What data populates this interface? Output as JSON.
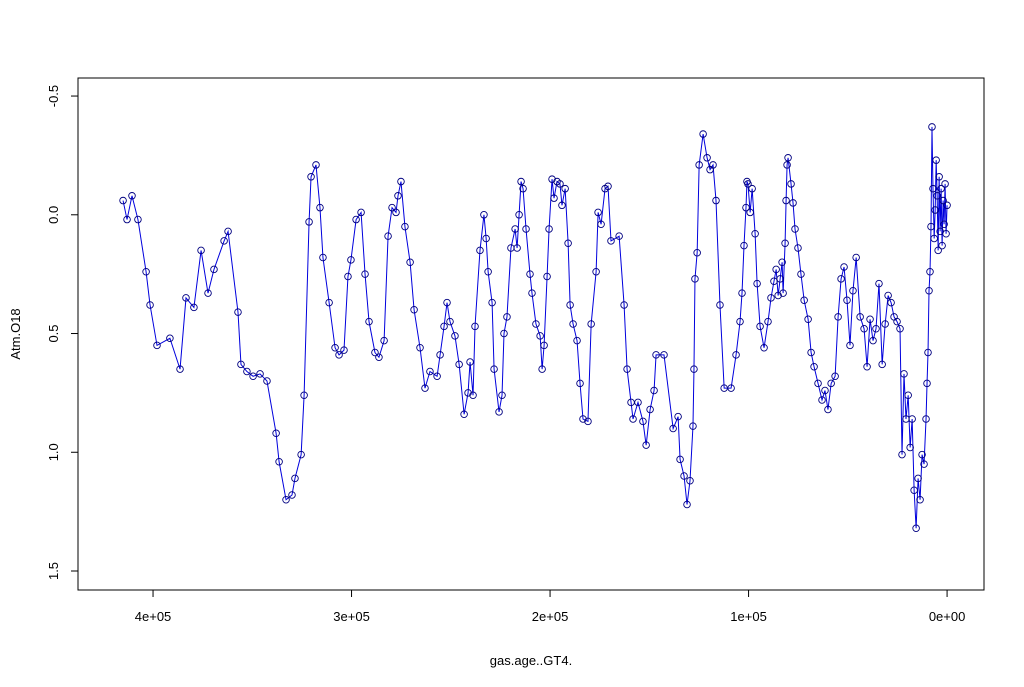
{
  "chart_data": {
    "type": "line",
    "xlabel": "gas.age..GT4.",
    "ylabel": "Atm.O18",
    "xlim": [
      437800,
      -18600
    ],
    "ylim": [
      -0.576,
      1.58
    ],
    "xticks": [
      {
        "value": 400000,
        "label": "4e+05"
      },
      {
        "value": 300000,
        "label": "3e+05"
      },
      {
        "value": 200000,
        "label": "2e+05"
      },
      {
        "value": 100000,
        "label": "1e+05"
      },
      {
        "value": 0,
        "label": "0e+00"
      }
    ],
    "yticks": [
      -0.5,
      {
        "value": 0,
        "label": "0.0"
      },
      0.5,
      {
        "value": 1,
        "label": "1.0"
      },
      1.5
    ],
    "line_color": "#0000dd",
    "point_color": "#000080",
    "x": [
      415100,
      413100,
      410600,
      407600,
      403500,
      401500,
      398000,
      391500,
      386400,
      383400,
      379400,
      375800,
      372300,
      369300,
      364200,
      362200,
      357200,
      355700,
      352700,
      349600,
      346100,
      342600,
      338000,
      336500,
      333000,
      330000,
      328500,
      325400,
      323900,
      321400,
      320400,
      317900,
      315900,
      314400,
      311300,
      308300,
      306300,
      303800,
      301800,
      300300,
      297700,
      295200,
      293200,
      291200,
      288200,
      286200,
      283600,
      281600,
      279600,
      277600,
      276600,
      275100,
      273100,
      270500,
      268500,
      265500,
      263000,
      260500,
      256900,
      255400,
      253400,
      251900,
      250400,
      247900,
      245800,
      243300,
      241300,
      240300,
      238800,
      237800,
      235300,
      233300,
      232200,
      231200,
      229200,
      228200,
      225700,
      224200,
      223200,
      221700,
      219700,
      217600,
      216600,
      215600,
      214600,
      213600,
      212100,
      210100,
      209100,
      207100,
      205000,
      204000,
      203000,
      201500,
      200500,
      199000,
      198000,
      196500,
      195000,
      194000,
      192400,
      190900,
      189900,
      188400,
      186400,
      184900,
      183400,
      180900,
      179300,
      176800,
      175800,
      174300,
      172300,
      170800,
      169300,
      165200,
      162700,
      161200,
      159200,
      158200,
      155700,
      153200,
      151600,
      149600,
      147600,
      146600,
      142600,
      138000,
      135500,
      134500,
      132500,
      131000,
      129500,
      128000,
      127500,
      127000,
      125900,
      124900,
      122900,
      120900,
      119400,
      117900,
      116400,
      114400,
      112300,
      108800,
      106300,
      104300,
      103300,
      102300,
      101300,
      100800,
      100300,
      99200,
      98200,
      96700,
      95700,
      94200,
      92200,
      90200,
      88700,
      87200,
      86100,
      85100,
      84100,
      83100,
      82600,
      81600,
      81100,
      80600,
      80100,
      78600,
      77600,
      76600,
      75100,
      73600,
      72000,
      70000,
      68500,
      67000,
      65000,
      63000,
      61500,
      60000,
      58400,
      56400,
      54900,
      53400,
      51900,
      50400,
      48900,
      47400,
      45800,
      43800,
      41800,
      40300,
      38800,
      37300,
      35800,
      34300,
      32700,
      31200,
      29700,
      28200,
      26700,
      25200,
      23700,
      22700,
      21700,
      20700,
      19600,
      18600,
      17600,
      16600,
      15600,
      14600,
      13600,
      12600,
      11600,
      10600,
      10100,
      9600,
      9100,
      8600,
      8100,
      7600,
      7100,
      6500,
      6000,
      5500,
      5000,
      4500,
      4000,
      3500,
      3000,
      2500,
      2000,
      1500,
      1000,
      500,
      0
    ],
    "values": [
      -0.06,
      0.02,
      -0.08,
      0.02,
      0.24,
      0.38,
      0.55,
      0.52,
      0.65,
      0.35,
      0.39,
      0.15,
      0.33,
      0.23,
      0.11,
      0.07,
      0.41,
      0.63,
      0.66,
      0.68,
      0.67,
      0.7,
      0.92,
      1.04,
      1.2,
      1.18,
      1.11,
      1.01,
      0.76,
      0.03,
      -0.16,
      -0.21,
      -0.03,
      0.18,
      0.37,
      0.56,
      0.59,
      0.57,
      0.26,
      0.19,
      0.02,
      -0.01,
      0.25,
      0.45,
      0.58,
      0.6,
      0.53,
      0.09,
      -0.03,
      -0.01,
      -0.08,
      -0.14,
      0.05,
      0.2,
      0.4,
      0.56,
      0.73,
      0.66,
      0.68,
      0.59,
      0.47,
      0.37,
      0.45,
      0.51,
      0.63,
      0.84,
      0.75,
      0.62,
      0.76,
      0.47,
      0.15,
      0.0,
      0.1,
      0.24,
      0.37,
      0.65,
      0.83,
      0.76,
      0.5,
      0.43,
      0.14,
      0.06,
      0.14,
      0.0,
      -0.14,
      -0.11,
      0.06,
      0.25,
      0.33,
      0.46,
      0.51,
      0.65,
      0.55,
      0.26,
      0.06,
      -0.15,
      -0.07,
      -0.14,
      -0.13,
      -0.04,
      -0.11,
      0.12,
      0.38,
      0.46,
      0.53,
      0.71,
      0.86,
      0.87,
      0.46,
      0.24,
      -0.01,
      0.04,
      -0.11,
      -0.12,
      0.11,
      0.09,
      0.38,
      0.65,
      0.79,
      0.86,
      0.79,
      0.87,
      0.97,
      0.82,
      0.74,
      0.59,
      0.59,
      0.9,
      0.85,
      1.03,
      1.1,
      1.22,
      1.12,
      0.89,
      0.65,
      0.27,
      0.16,
      -0.21,
      -0.34,
      -0.24,
      -0.19,
      -0.21,
      -0.06,
      0.38,
      0.73,
      0.73,
      0.59,
      0.45,
      0.33,
      0.13,
      -0.03,
      -0.14,
      -0.13,
      -0.01,
      -0.11,
      0.08,
      0.29,
      0.47,
      0.56,
      0.45,
      0.35,
      0.28,
      0.23,
      0.34,
      0.27,
      0.2,
      0.33,
      0.12,
      -0.06,
      -0.21,
      -0.24,
      -0.13,
      -0.05,
      0.06,
      0.14,
      0.25,
      0.36,
      0.44,
      0.58,
      0.64,
      0.71,
      0.78,
      0.74,
      0.82,
      0.71,
      0.68,
      0.43,
      0.27,
      0.22,
      0.36,
      0.55,
      0.32,
      0.18,
      0.43,
      0.48,
      0.64,
      0.44,
      0.53,
      0.48,
      0.29,
      0.63,
      0.46,
      0.34,
      0.37,
      0.43,
      0.45,
      0.48,
      1.01,
      0.67,
      0.86,
      0.76,
      0.98,
      0.86,
      1.16,
      1.32,
      1.11,
      1.2,
      1.01,
      1.05,
      0.86,
      0.71,
      0.58,
      0.32,
      0.24,
      0.05,
      -0.37,
      -0.11,
      0.1,
      -0.02,
      -0.23,
      -0.08,
      0.15,
      -0.16,
      0.07,
      -0.11,
      0.13,
      -0.06,
      0.04,
      -0.13,
      0.08,
      -0.04
    ]
  }
}
